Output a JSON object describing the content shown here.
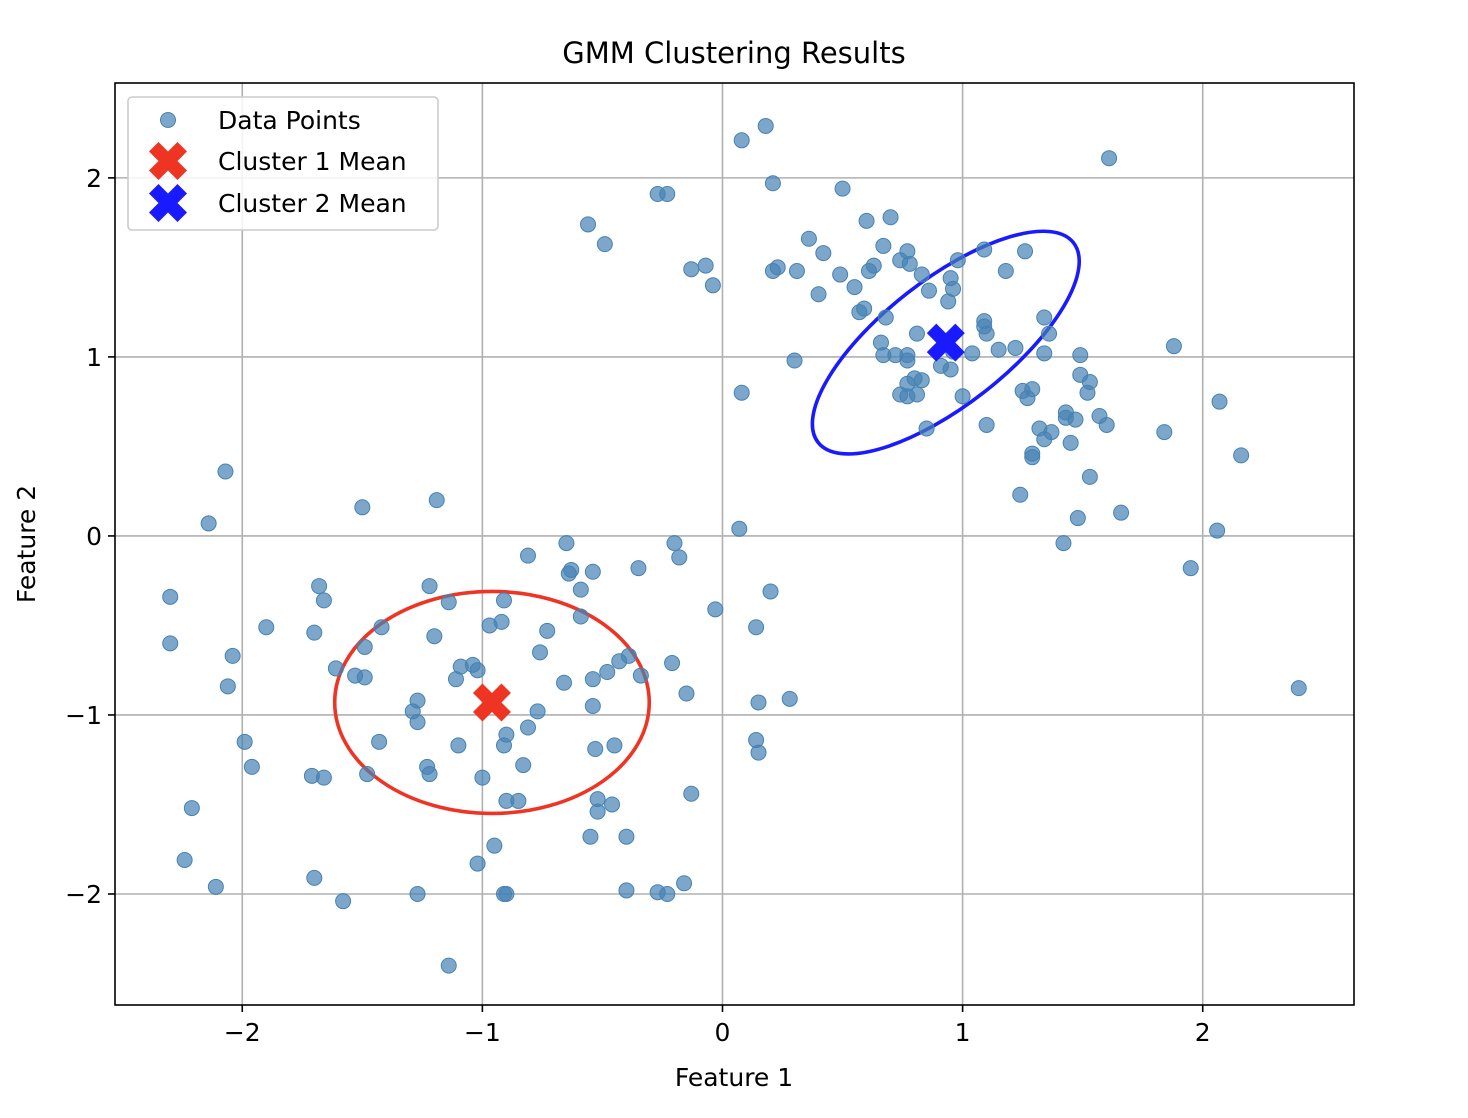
{
  "chart_data": {
    "type": "scatter",
    "title": "GMM Clustering Results",
    "xlabel": "Feature 1",
    "ylabel": "Feature 2",
    "xlim": [
      -2.53,
      2.63
    ],
    "ylim": [
      -2.62,
      2.53
    ],
    "xticks": [
      -2,
      -1,
      0,
      1,
      2
    ],
    "yticks": [
      -2,
      -1,
      0,
      1,
      2
    ],
    "grid": true,
    "legend": {
      "placement": "upper-left",
      "entries": [
        "Data Points",
        "Cluster 1 Mean",
        "Cluster 2 Mean"
      ]
    },
    "series": [
      {
        "name": "Data Points",
        "marker": "circle",
        "color": "#4682b4",
        "points": [
          [
            0.08,
            2.21
          ],
          [
            0.18,
            2.29
          ],
          [
            0.21,
            1.97
          ],
          [
            1.61,
            2.11
          ],
          [
            0.5,
            1.94
          ],
          [
            -0.27,
            1.91
          ],
          [
            -0.23,
            1.91
          ],
          [
            -0.56,
            1.74
          ],
          [
            -0.49,
            1.63
          ],
          [
            0.6,
            1.76
          ],
          [
            0.7,
            1.78
          ],
          [
            0.36,
            1.66
          ],
          [
            0.42,
            1.58
          ],
          [
            0.67,
            1.62
          ],
          [
            0.77,
            1.59
          ],
          [
            0.98,
            1.54
          ],
          [
            1.09,
            1.6
          ],
          [
            1.26,
            1.59
          ],
          [
            -0.13,
            1.49
          ],
          [
            -0.07,
            1.51
          ],
          [
            -0.04,
            1.4
          ],
          [
            0.21,
            1.48
          ],
          [
            0.23,
            1.5
          ],
          [
            0.31,
            1.48
          ],
          [
            0.49,
            1.46
          ],
          [
            0.61,
            1.48
          ],
          [
            0.63,
            1.51
          ],
          [
            0.74,
            1.54
          ],
          [
            0.78,
            1.52
          ],
          [
            0.83,
            1.46
          ],
          [
            0.95,
            1.44
          ],
          [
            1.18,
            1.48
          ],
          [
            0.4,
            1.35
          ],
          [
            0.55,
            1.39
          ],
          [
            0.86,
            1.37
          ],
          [
            0.96,
            1.38
          ],
          [
            0.94,
            1.31
          ],
          [
            0.57,
            1.25
          ],
          [
            0.59,
            1.27
          ],
          [
            0.68,
            1.22
          ],
          [
            1.09,
            1.2
          ],
          [
            1.09,
            1.17
          ],
          [
            1.34,
            1.22
          ],
          [
            0.81,
            1.13
          ],
          [
            1.1,
            1.13
          ],
          [
            1.36,
            1.13
          ],
          [
            0.66,
            1.08
          ],
          [
            0.96,
            1.03
          ],
          [
            1.04,
            1.02
          ],
          [
            1.15,
            1.04
          ],
          [
            1.22,
            1.05
          ],
          [
            1.34,
            1.02
          ],
          [
            1.49,
            1.01
          ],
          [
            1.88,
            1.06
          ],
          [
            0.3,
            0.98
          ],
          [
            0.67,
            1.01
          ],
          [
            0.72,
            1.01
          ],
          [
            0.77,
            1.01
          ],
          [
            0.77,
            0.98
          ],
          [
            0.91,
            0.95
          ],
          [
            0.95,
            0.93
          ],
          [
            0.8,
            0.88
          ],
          [
            0.83,
            0.87
          ],
          [
            0.77,
            0.85
          ],
          [
            1.49,
            0.9
          ],
          [
            1.53,
            0.86
          ],
          [
            1.25,
            0.81
          ],
          [
            1.29,
            0.82
          ],
          [
            1.52,
            0.8
          ],
          [
            0.08,
            0.8
          ],
          [
            0.74,
            0.79
          ],
          [
            0.77,
            0.78
          ],
          [
            0.81,
            0.79
          ],
          [
            1.0,
            0.78
          ],
          [
            1.27,
            0.77
          ],
          [
            1.43,
            0.69
          ],
          [
            1.43,
            0.66
          ],
          [
            1.47,
            0.65
          ],
          [
            1.57,
            0.67
          ],
          [
            1.6,
            0.62
          ],
          [
            2.07,
            0.75
          ],
          [
            1.1,
            0.62
          ],
          [
            0.85,
            0.6
          ],
          [
            1.32,
            0.6
          ],
          [
            1.37,
            0.58
          ],
          [
            1.34,
            0.54
          ],
          [
            1.45,
            0.52
          ],
          [
            1.84,
            0.58
          ],
          [
            1.29,
            0.46
          ],
          [
            1.29,
            0.44
          ],
          [
            2.16,
            0.45
          ],
          [
            1.53,
            0.33
          ],
          [
            1.24,
            0.23
          ],
          [
            1.48,
            0.1
          ],
          [
            1.66,
            0.13
          ],
          [
            2.06,
            0.03
          ],
          [
            1.42,
            -0.04
          ],
          [
            1.95,
            -0.18
          ],
          [
            2.4,
            -0.85
          ],
          [
            -2.07,
            0.36
          ],
          [
            -2.14,
            0.07
          ],
          [
            -1.5,
            0.16
          ],
          [
            -1.19,
            0.2
          ],
          [
            0.07,
            0.04
          ],
          [
            -0.65,
            -0.04
          ],
          [
            -0.2,
            -0.04
          ],
          [
            -0.81,
            -0.11
          ],
          [
            -0.18,
            -0.12
          ],
          [
            -0.63,
            -0.19
          ],
          [
            -0.64,
            -0.21
          ],
          [
            -0.54,
            -0.2
          ],
          [
            -0.35,
            -0.18
          ],
          [
            -2.3,
            -0.34
          ],
          [
            -1.68,
            -0.28
          ],
          [
            -1.66,
            -0.36
          ],
          [
            -1.22,
            -0.28
          ],
          [
            -1.14,
            -0.37
          ],
          [
            -0.59,
            -0.3
          ],
          [
            0.2,
            -0.31
          ],
          [
            -0.91,
            -0.36
          ],
          [
            -0.03,
            -0.41
          ],
          [
            -0.59,
            -0.45
          ],
          [
            -1.9,
            -0.51
          ],
          [
            -1.42,
            -0.51
          ],
          [
            -1.7,
            -0.54
          ],
          [
            -1.2,
            -0.56
          ],
          [
            -0.97,
            -0.5
          ],
          [
            -0.92,
            -0.48
          ],
          [
            -0.73,
            -0.53
          ],
          [
            0.14,
            -0.51
          ],
          [
            -2.3,
            -0.6
          ],
          [
            -2.04,
            -0.67
          ],
          [
            -1.49,
            -0.62
          ],
          [
            -0.76,
            -0.65
          ],
          [
            -1.61,
            -0.74
          ],
          [
            -1.53,
            -0.78
          ],
          [
            -1.49,
            -0.79
          ],
          [
            -1.09,
            -0.73
          ],
          [
            -1.04,
            -0.72
          ],
          [
            -1.02,
            -0.75
          ],
          [
            -1.11,
            -0.8
          ],
          [
            -0.43,
            -0.7
          ],
          [
            -0.39,
            -0.67
          ],
          [
            -0.48,
            -0.76
          ],
          [
            -0.34,
            -0.78
          ],
          [
            -0.21,
            -0.71
          ],
          [
            -0.66,
            -0.82
          ],
          [
            -0.54,
            -0.8
          ],
          [
            -2.06,
            -0.84
          ],
          [
            -0.15,
            -0.88
          ],
          [
            0.15,
            -0.93
          ],
          [
            0.28,
            -0.91
          ],
          [
            -1.27,
            -0.92
          ],
          [
            -1.29,
            -0.98
          ],
          [
            -1.27,
            -1.04
          ],
          [
            -0.77,
            -0.98
          ],
          [
            -0.54,
            -0.95
          ],
          [
            -0.81,
            -1.07
          ],
          [
            -0.9,
            -1.11
          ],
          [
            -0.91,
            -1.17
          ],
          [
            -1.1,
            -1.17
          ],
          [
            -1.43,
            -1.15
          ],
          [
            -0.53,
            -1.19
          ],
          [
            -0.45,
            -1.17
          ],
          [
            0.14,
            -1.14
          ],
          [
            0.15,
            -1.21
          ],
          [
            -1.99,
            -1.15
          ],
          [
            -1.96,
            -1.29
          ],
          [
            -1.23,
            -1.29
          ],
          [
            -1.22,
            -1.33
          ],
          [
            -0.83,
            -1.28
          ],
          [
            -1.71,
            -1.34
          ],
          [
            -1.66,
            -1.35
          ],
          [
            -1.48,
            -1.33
          ],
          [
            -1.0,
            -1.35
          ],
          [
            -0.9,
            -1.48
          ],
          [
            -0.85,
            -1.48
          ],
          [
            -0.52,
            -1.47
          ],
          [
            -0.52,
            -1.54
          ],
          [
            -0.46,
            -1.5
          ],
          [
            -0.13,
            -1.44
          ],
          [
            -2.21,
            -1.52
          ],
          [
            -0.55,
            -1.68
          ],
          [
            -0.4,
            -1.68
          ],
          [
            -0.95,
            -1.73
          ],
          [
            -1.02,
            -1.83
          ],
          [
            -2.24,
            -1.81
          ],
          [
            -1.7,
            -1.91
          ],
          [
            -2.11,
            -1.96
          ],
          [
            -1.27,
            -2.0
          ],
          [
            -0.9,
            -2.0
          ],
          [
            -0.91,
            -2.0
          ],
          [
            -0.4,
            -1.98
          ],
          [
            -0.27,
            -1.99
          ],
          [
            -0.23,
            -2.0
          ],
          [
            -0.16,
            -1.94
          ],
          [
            -1.58,
            -2.04
          ],
          [
            -1.14,
            -2.4
          ]
        ]
      },
      {
        "name": "Cluster 1 Mean",
        "marker": "X",
        "color": "#ee3524",
        "points": [
          [
            -0.96,
            -0.93
          ]
        ]
      },
      {
        "name": "Cluster 2 Mean",
        "marker": "X",
        "color": "#1a1aff",
        "points": [
          [
            0.93,
            1.08
          ]
        ]
      }
    ],
    "ellipses": [
      {
        "cluster": "Cluster 1 Mean",
        "color": "#ee3524",
        "center": [
          -0.96,
          -0.93
        ],
        "width": 1.31,
        "height": 1.24,
        "angle": 0
      },
      {
        "cluster": "Cluster 2 Mean",
        "color": "#1a1aff",
        "center": [
          0.93,
          1.08
        ],
        "width": 1.35,
        "height": 0.7,
        "angle": -38
      }
    ]
  }
}
